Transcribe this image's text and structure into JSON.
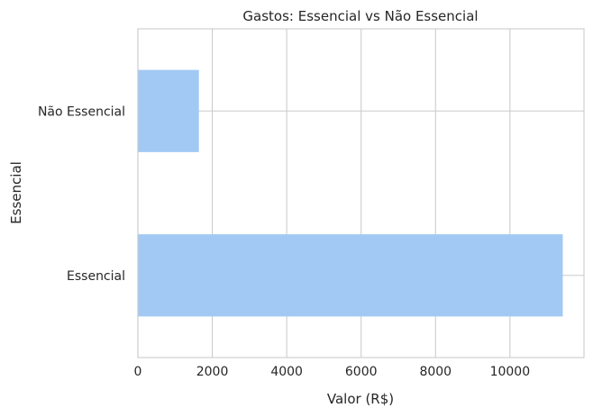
{
  "chart_data": {
    "type": "bar",
    "orientation": "horizontal",
    "title": "Gastos: Essencial vs Não Essencial",
    "xlabel": "Valor (R$)",
    "ylabel": "Essencial",
    "categories": [
      "Essencial",
      "Não Essencial"
    ],
    "values": [
      11420,
      1640
    ],
    "xlim": [
      0,
      11990
    ],
    "xticks": [
      0,
      2000,
      4000,
      6000,
      8000,
      10000
    ],
    "grid": true,
    "bar_color": "#a1c9f4"
  }
}
